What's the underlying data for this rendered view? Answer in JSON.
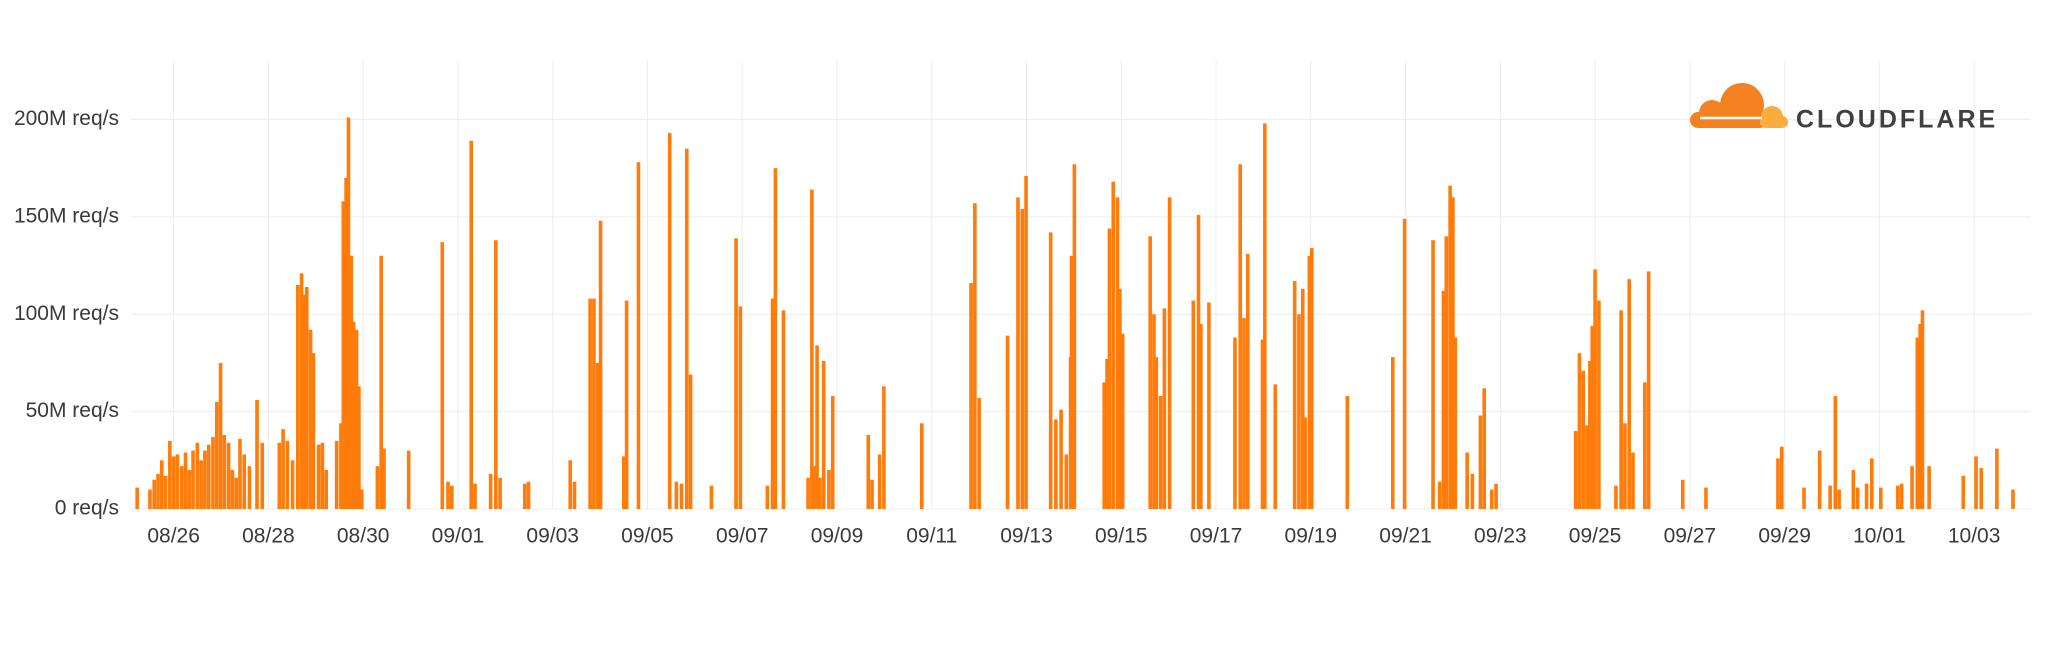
{
  "chart_data": {
    "type": "bar",
    "x": [
      -0.77,
      -0.5,
      -0.41,
      -0.33,
      -0.25,
      -0.17,
      -0.08,
      0,
      0.08,
      0.17,
      0.25,
      0.33,
      0.41,
      0.5,
      0.58,
      0.66,
      0.74,
      0.83,
      0.91,
      0.99,
      1.07,
      1.16,
      1.24,
      1.32,
      1.4,
      1.49,
      1.6,
      1.76,
      1.87,
      2.23,
      2.31,
      2.4,
      2.51,
      2.62,
      2.7,
      2.75,
      2.81,
      2.89,
      2.95,
      3.06,
      3.14,
      3.22,
      3.44,
      3.53,
      3.58,
      3.64,
      3.69,
      3.75,
      3.8,
      3.86,
      3.91,
      3.97,
      4.3,
      4.38,
      4.44,
      4.96,
      5.67,
      5.79,
      5.87,
      6.28,
      6.36,
      6.69,
      6.8,
      6.89,
      7.41,
      7.49,
      8.37,
      8.46,
      8.79,
      8.87,
      8.95,
      9.01,
      9.5,
      9.56,
      9.81,
      10.47,
      10.61,
      10.72,
      10.83,
      10.91,
      11.35,
      11.87,
      11.96,
      12.53,
      12.64,
      12.7,
      12.87,
      13.39,
      13.47,
      13.53,
      13.58,
      13.64,
      13.72,
      13.83,
      13.91,
      14.66,
      14.74,
      14.9,
      14.99,
      15.79,
      16.83,
      16.91,
      17.0,
      17.6,
      17.82,
      17.91,
      17.99,
      18.51,
      18.62,
      18.73,
      18.84,
      18.93,
      18.95,
      19.01,
      19.64,
      19.7,
      19.75,
      19.83,
      19.92,
      19.97,
      20.03,
      20.61,
      20.69,
      20.74,
      20.83,
      20.91,
      21.02,
      21.52,
      21.63,
      21.68,
      21.85,
      22.4,
      22.51,
      22.59,
      22.67,
      22.98,
      23.03,
      23.25,
      23.66,
      23.75,
      23.83,
      23.88,
      23.97,
      24.02,
      24.77,
      25.73,
      25.98,
      26.58,
      26.72,
      26.8,
      26.86,
      26.94,
      27.0,
      27.05,
      27.3,
      27.41,
      27.58,
      27.66,
      27.82,
      27.91,
      29.59,
      29.67,
      29.75,
      29.83,
      29.89,
      29.94,
      30.0,
      30.08,
      30.44,
      30.55,
      30.63,
      30.72,
      30.8,
      31.05,
      31.13,
      31.85,
      32.34,
      33.86,
      33.94,
      34.41,
      34.74,
      34.96,
      35.07,
      35.15,
      35.45,
      35.54,
      35.73,
      35.84,
      36.03,
      36.39,
      36.47,
      36.69,
      36.8,
      36.86,
      36.91,
      37.05,
      37.77,
      38.04,
      38.15,
      38.48,
      38.82
    ],
    "values": [
      11,
      10,
      15,
      18,
      25,
      17,
      35,
      27,
      28,
      22,
      29,
      20,
      30,
      34,
      25,
      30,
      33,
      37,
      55,
      75,
      38,
      34,
      20,
      16,
      36,
      28,
      22,
      56,
      34,
      34,
      41,
      35,
      25,
      115,
      121,
      110,
      114,
      92,
      80,
      33,
      34,
      20,
      35,
      44,
      158,
      170,
      201,
      130,
      96,
      92,
      63,
      10,
      22,
      130,
      31,
      30,
      137,
      14,
      12,
      189,
      13,
      18,
      138,
      16,
      13,
      14,
      25,
      14,
      108,
      108,
      75,
      148,
      27,
      107,
      178,
      193,
      14,
      13,
      185,
      69,
      12,
      139,
      104,
      12,
      108,
      175,
      102,
      16,
      164,
      22,
      84,
      16,
      76,
      20,
      58,
      38,
      15,
      28,
      63,
      44,
      116,
      157,
      57,
      89,
      160,
      154,
      171,
      142,
      46,
      51,
      28,
      78,
      130,
      177,
      65,
      77,
      144,
      168,
      160,
      113,
      90,
      140,
      100,
      78,
      58,
      103,
      160,
      107,
      151,
      95,
      106,
      88,
      177,
      98,
      131,
      87,
      198,
      64,
      117,
      100,
      113,
      47,
      130,
      134,
      58,
      78,
      149,
      138,
      14,
      112,
      140,
      166,
      160,
      88,
      29,
      18,
      48,
      62,
      10,
      13,
      40,
      80,
      71,
      43,
      76,
      94,
      123,
      107,
      12,
      102,
      44,
      118,
      29,
      65,
      122,
      15,
      11,
      26,
      32,
      11,
      30,
      12,
      58,
      10,
      20,
      11,
      13,
      26,
      11,
      12,
      13,
      22,
      88,
      95,
      102,
      22,
      17,
      27,
      21,
      31,
      10
    ],
    "color": "#ff7b0a",
    "xlim": [
      -0.9,
      39.2
    ],
    "xticks": [
      {
        "value": 0,
        "label": "08/26"
      },
      {
        "value": 2,
        "label": "08/28"
      },
      {
        "value": 4,
        "label": "08/30"
      },
      {
        "value": 6,
        "label": "09/01"
      },
      {
        "value": 8,
        "label": "09/03"
      },
      {
        "value": 10,
        "label": "09/05"
      },
      {
        "value": 12,
        "label": "09/07"
      },
      {
        "value": 14,
        "label": "09/09"
      },
      {
        "value": 16,
        "label": "09/11"
      },
      {
        "value": 18,
        "label": "09/13"
      },
      {
        "value": 20,
        "label": "09/15"
      },
      {
        "value": 22,
        "label": "09/17"
      },
      {
        "value": 24,
        "label": "09/19"
      },
      {
        "value": 26,
        "label": "09/21"
      },
      {
        "value": 28,
        "label": "09/23"
      },
      {
        "value": 30,
        "label": "09/25"
      },
      {
        "value": 32,
        "label": "09/27"
      },
      {
        "value": 34,
        "label": "09/29"
      },
      {
        "value": 36,
        "label": "10/01"
      },
      {
        "value": 38,
        "label": "10/03"
      }
    ],
    "ylim": [
      0,
      230
    ],
    "yticks": [
      {
        "value": 0,
        "label": "0 req/s"
      },
      {
        "value": 50,
        "label": "50M req/s"
      },
      {
        "value": 100,
        "label": "100M req/s"
      },
      {
        "value": 150,
        "label": "150M req/s"
      },
      {
        "value": 200,
        "label": "200M req/s"
      }
    ],
    "grid": true
  },
  "logo": {
    "text": "CLOUDFLARE"
  }
}
